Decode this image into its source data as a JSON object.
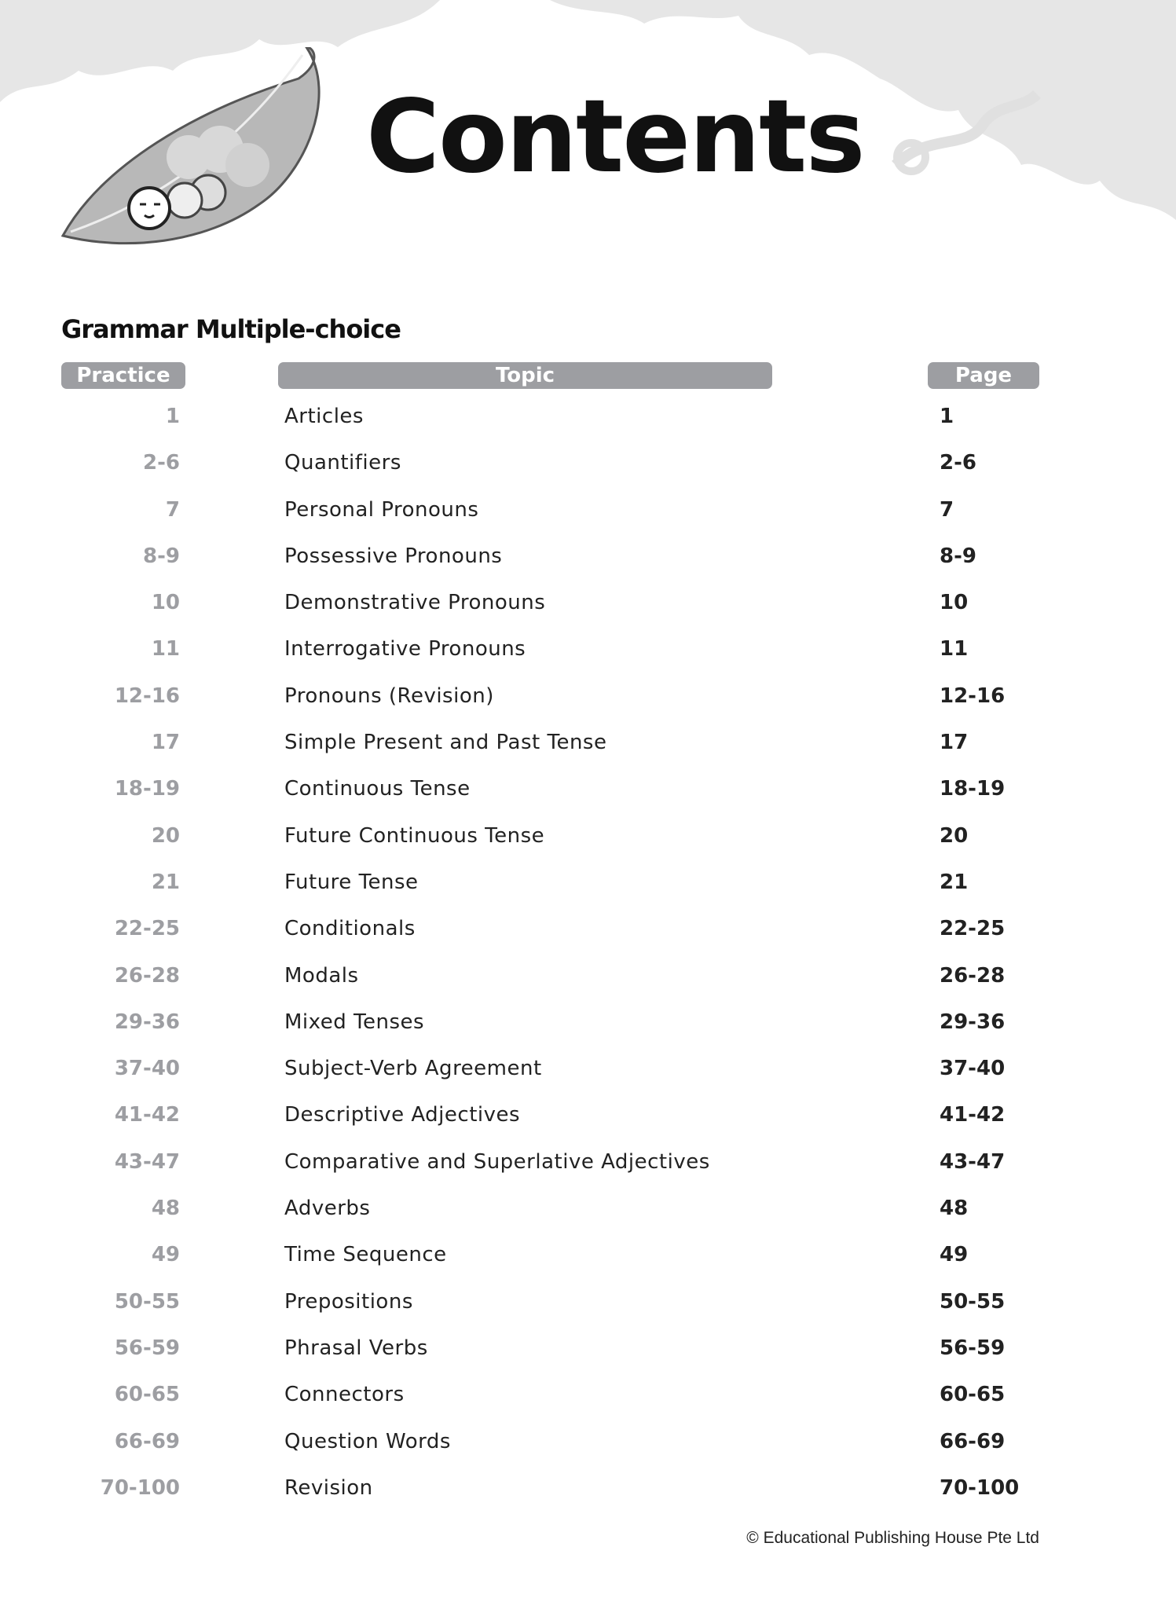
{
  "header": {
    "title": "Contents"
  },
  "section": {
    "title": "Grammar Multiple-choice"
  },
  "columns": {
    "practice": "Practice",
    "topic": "Topic",
    "page": "Page"
  },
  "rows": [
    {
      "practice": "1",
      "topic": "Articles",
      "page": "1"
    },
    {
      "practice": "2-6",
      "topic": "Quantifiers",
      "page": "2-6"
    },
    {
      "practice": "7",
      "topic": "Personal Pronouns",
      "page": "7"
    },
    {
      "practice": "8-9",
      "topic": "Possessive Pronouns",
      "page": "8-9"
    },
    {
      "practice": "10",
      "topic": "Demonstrative Pronouns",
      "page": "10"
    },
    {
      "practice": "11",
      "topic": "Interrogative Pronouns",
      "page": "11"
    },
    {
      "practice": "12-16",
      "topic": "Pronouns (Revision)",
      "page": "12-16"
    },
    {
      "practice": "17",
      "topic": "Simple Present and Past Tense",
      "page": "17"
    },
    {
      "practice": "18-19",
      "topic": "Continuous Tense",
      "page": "18-19"
    },
    {
      "practice": "20",
      "topic": "Future Continuous Tense",
      "page": "20"
    },
    {
      "practice": "21",
      "topic": "Future Tense",
      "page": "21"
    },
    {
      "practice": "22-25",
      "topic": "Conditionals",
      "page": "22-25"
    },
    {
      "practice": "26-28",
      "topic": "Modals",
      "page": "26-28"
    },
    {
      "practice": "29-36",
      "topic": "Mixed Tenses",
      "page": "29-36"
    },
    {
      "practice": "37-40",
      "topic": "Subject-Verb Agreement",
      "page": "37-40"
    },
    {
      "practice": "41-42",
      "topic": "Descriptive Adjectives",
      "page": "41-42"
    },
    {
      "practice": "43-47",
      "topic": "Comparative and Superlative Adjectives",
      "page": "43-47"
    },
    {
      "practice": "48",
      "topic": "Adverbs",
      "page": "48"
    },
    {
      "practice": "49",
      "topic": "Time Sequence",
      "page": "49"
    },
    {
      "practice": "50-55",
      "topic": "Prepositions",
      "page": "50-55"
    },
    {
      "practice": "56-59",
      "topic": "Phrasal Verbs",
      "page": "56-59"
    },
    {
      "practice": "60-65",
      "topic": "Connectors",
      "page": "60-65"
    },
    {
      "practice": "66-69",
      "topic": "Question Words",
      "page": "66-69"
    },
    {
      "practice": "70-100",
      "topic": "Revision",
      "page": "70-100"
    }
  ],
  "footer": {
    "copyright": "© Educational Publishing House Pte Ltd"
  },
  "colors": {
    "pill": "#9d9ea2",
    "practice_text": "#9d9ea2",
    "text": "#222222",
    "foliage": "#e6e6e6"
  }
}
